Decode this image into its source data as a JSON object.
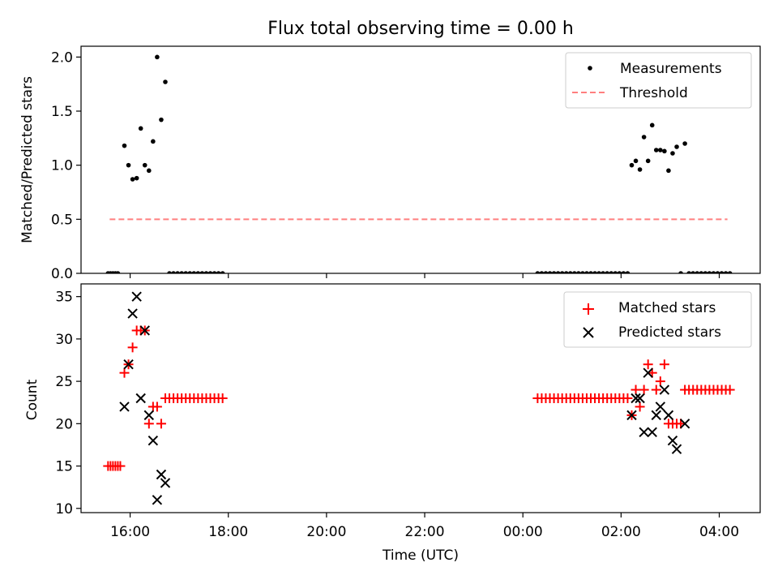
{
  "title": "Flux total observing time = 0.00 h",
  "xlabel": "Time (UTC)",
  "x_ticks": [
    "16:00",
    "18:00",
    "20:00",
    "22:00",
    "00:00",
    "02:00",
    "04:00"
  ],
  "x_range": [
    "15:00",
    "04:50"
  ],
  "colors": {
    "measurement": "#000000",
    "threshold": "#ff7f7f",
    "matched": "#ff0000",
    "predicted": "#000000"
  },
  "chart_data": [
    {
      "type": "scatter",
      "ylabel": "Matched/Predicted stars",
      "ylim": [
        0,
        2.1
      ],
      "y_ticks": [
        "0.0",
        "0.5",
        "1.0",
        "1.5",
        "2.0"
      ],
      "legend_placement": "top-right",
      "legend": [
        "Measurements",
        "Threshold"
      ],
      "threshold": {
        "value": 0.5,
        "x_start": "15:35",
        "x_end": "04:10",
        "style": "dashed"
      },
      "series": [
        {
          "name": "Measurements",
          "points": [
            [
              "15:33",
              0
            ],
            [
              "15:36",
              0
            ],
            [
              "15:39",
              0
            ],
            [
              "15:42",
              0
            ],
            [
              "15:45",
              0
            ],
            [
              "15:53",
              1.18
            ],
            [
              "15:58",
              1.0
            ],
            [
              "16:03",
              0.87
            ],
            [
              "16:08",
              0.88
            ],
            [
              "16:13",
              1.34
            ],
            [
              "16:18",
              1.0
            ],
            [
              "16:23",
              0.95
            ],
            [
              "16:28",
              1.22
            ],
            [
              "16:33",
              2.0
            ],
            [
              "16:38",
              1.42
            ],
            [
              "16:43",
              1.77
            ],
            [
              "16:48",
              0
            ],
            [
              "16:53",
              0
            ],
            [
              "16:58",
              0
            ],
            [
              "17:03",
              0
            ],
            [
              "17:08",
              0
            ],
            [
              "17:13",
              0
            ],
            [
              "17:18",
              0
            ],
            [
              "17:23",
              0
            ],
            [
              "17:28",
              0
            ],
            [
              "17:33",
              0
            ],
            [
              "17:38",
              0
            ],
            [
              "17:43",
              0
            ],
            [
              "17:48",
              0
            ],
            [
              "17:53",
              0
            ],
            [
              "00:18",
              0
            ],
            [
              "00:23",
              0
            ],
            [
              "00:28",
              0
            ],
            [
              "00:33",
              0
            ],
            [
              "00:38",
              0
            ],
            [
              "00:43",
              0
            ],
            [
              "00:48",
              0
            ],
            [
              "00:53",
              0
            ],
            [
              "00:58",
              0
            ],
            [
              "01:03",
              0
            ],
            [
              "01:08",
              0
            ],
            [
              "01:13",
              0
            ],
            [
              "01:18",
              0
            ],
            [
              "01:23",
              0
            ],
            [
              "01:28",
              0
            ],
            [
              "01:33",
              0
            ],
            [
              "01:38",
              0
            ],
            [
              "01:43",
              0
            ],
            [
              "01:48",
              0
            ],
            [
              "01:53",
              0
            ],
            [
              "01:58",
              0
            ],
            [
              "02:03",
              0
            ],
            [
              "02:08",
              0
            ],
            [
              "02:13",
              1.0
            ],
            [
              "02:18",
              1.04
            ],
            [
              "02:23",
              0.96
            ],
            [
              "02:28",
              1.26
            ],
            [
              "02:33",
              1.04
            ],
            [
              "02:38",
              1.37
            ],
            [
              "02:43",
              1.14
            ],
            [
              "02:48",
              1.14
            ],
            [
              "02:53",
              1.13
            ],
            [
              "02:58",
              0.95
            ],
            [
              "03:03",
              1.11
            ],
            [
              "03:08",
              1.17
            ],
            [
              "03:13",
              0
            ],
            [
              "03:18",
              1.2
            ],
            [
              "03:23",
              0
            ],
            [
              "03:28",
              0
            ],
            [
              "03:33",
              0
            ],
            [
              "03:38",
              0
            ],
            [
              "03:43",
              0
            ],
            [
              "03:48",
              0
            ],
            [
              "03:53",
              0
            ],
            [
              "03:58",
              0
            ],
            [
              "04:03",
              0
            ],
            [
              "04:08",
              0
            ],
            [
              "04:13",
              0
            ]
          ]
        }
      ]
    },
    {
      "type": "scatter",
      "ylabel": "Count",
      "ylim": [
        9.5,
        36.5
      ],
      "y_ticks": [
        "10",
        "15",
        "20",
        "25",
        "30",
        "35"
      ],
      "legend_placement": "top-right",
      "legend": [
        "Matched stars",
        "Predicted stars"
      ],
      "series": [
        {
          "name": "Matched stars",
          "marker": "plus",
          "points": [
            [
              "15:33",
              15
            ],
            [
              "15:36",
              15
            ],
            [
              "15:39",
              15
            ],
            [
              "15:42",
              15
            ],
            [
              "15:45",
              15
            ],
            [
              "15:48",
              15
            ],
            [
              "15:53",
              26
            ],
            [
              "15:58",
              27
            ],
            [
              "16:03",
              29
            ],
            [
              "16:08",
              31
            ],
            [
              "16:13",
              31
            ],
            [
              "16:18",
              31
            ],
            [
              "16:23",
              20
            ],
            [
              "16:28",
              22
            ],
            [
              "16:33",
              22
            ],
            [
              "16:38",
              20
            ],
            [
              "16:43",
              23
            ],
            [
              "16:48",
              23
            ],
            [
              "16:53",
              23
            ],
            [
              "16:58",
              23
            ],
            [
              "17:03",
              23
            ],
            [
              "17:08",
              23
            ],
            [
              "17:13",
              23
            ],
            [
              "17:18",
              23
            ],
            [
              "17:23",
              23
            ],
            [
              "17:28",
              23
            ],
            [
              "17:33",
              23
            ],
            [
              "17:38",
              23
            ],
            [
              "17:43",
              23
            ],
            [
              "17:48",
              23
            ],
            [
              "17:53",
              23
            ],
            [
              "00:18",
              23
            ],
            [
              "00:23",
              23
            ],
            [
              "00:28",
              23
            ],
            [
              "00:33",
              23
            ],
            [
              "00:38",
              23
            ],
            [
              "00:43",
              23
            ],
            [
              "00:48",
              23
            ],
            [
              "00:53",
              23
            ],
            [
              "00:58",
              23
            ],
            [
              "01:03",
              23
            ],
            [
              "01:08",
              23
            ],
            [
              "01:13",
              23
            ],
            [
              "01:18",
              23
            ],
            [
              "01:23",
              23
            ],
            [
              "01:28",
              23
            ],
            [
              "01:33",
              23
            ],
            [
              "01:38",
              23
            ],
            [
              "01:43",
              23
            ],
            [
              "01:48",
              23
            ],
            [
              "01:53",
              23
            ],
            [
              "01:58",
              23
            ],
            [
              "02:03",
              23
            ],
            [
              "02:08",
              23
            ],
            [
              "02:13",
              21
            ],
            [
              "02:18",
              24
            ],
            [
              "02:23",
              22
            ],
            [
              "02:28",
              24
            ],
            [
              "02:33",
              27
            ],
            [
              "02:38",
              26
            ],
            [
              "02:43",
              24
            ],
            [
              "02:48",
              25
            ],
            [
              "02:53",
              27
            ],
            [
              "02:58",
              20
            ],
            [
              "03:03",
              20
            ],
            [
              "03:08",
              20
            ],
            [
              "03:13",
              20
            ],
            [
              "03:18",
              24
            ],
            [
              "03:23",
              24
            ],
            [
              "03:28",
              24
            ],
            [
              "03:33",
              24
            ],
            [
              "03:38",
              24
            ],
            [
              "03:43",
              24
            ],
            [
              "03:48",
              24
            ],
            [
              "03:53",
              24
            ],
            [
              "03:58",
              24
            ],
            [
              "04:03",
              24
            ],
            [
              "04:08",
              24
            ],
            [
              "04:13",
              24
            ]
          ]
        },
        {
          "name": "Predicted stars",
          "marker": "x",
          "points": [
            [
              "15:53",
              22
            ],
            [
              "15:58",
              27
            ],
            [
              "16:03",
              33
            ],
            [
              "16:08",
              35
            ],
            [
              "16:13",
              23
            ],
            [
              "16:18",
              31
            ],
            [
              "16:23",
              21
            ],
            [
              "16:28",
              18
            ],
            [
              "16:33",
              11
            ],
            [
              "16:38",
              14
            ],
            [
              "16:43",
              13
            ],
            [
              "02:13",
              21
            ],
            [
              "02:18",
              23
            ],
            [
              "02:23",
              23
            ],
            [
              "02:28",
              19
            ],
            [
              "02:33",
              26
            ],
            [
              "02:38",
              19
            ],
            [
              "02:43",
              21
            ],
            [
              "02:48",
              22
            ],
            [
              "02:53",
              24
            ],
            [
              "02:58",
              21
            ],
            [
              "03:03",
              18
            ],
            [
              "03:08",
              17
            ],
            [
              "03:18",
              20
            ]
          ]
        }
      ]
    }
  ]
}
